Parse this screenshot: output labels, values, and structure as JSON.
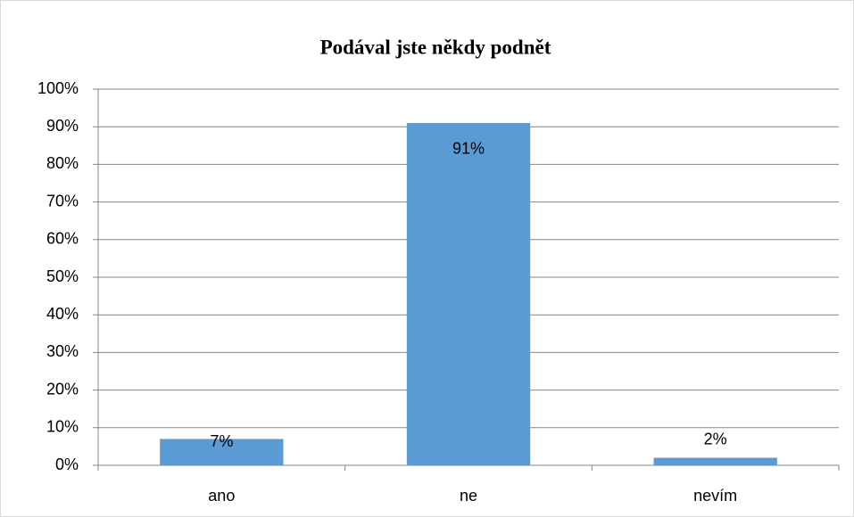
{
  "chart_data": {
    "type": "bar",
    "title": "Podával jste někdy podnět",
    "categories": [
      "ano",
      "ne",
      "nevím"
    ],
    "values": [
      7,
      91,
      2
    ],
    "value_labels": [
      "7%",
      "91%",
      "2%"
    ],
    "color": "#5b9bd5",
    "ylim": [
      0,
      100
    ],
    "yticks": [
      {
        "value": 0,
        "label": "0%"
      },
      {
        "value": 10,
        "label": "10%"
      },
      {
        "value": 20,
        "label": "20%"
      },
      {
        "value": 30,
        "label": "30%"
      },
      {
        "value": 40,
        "label": "40%"
      },
      {
        "value": 50,
        "label": "50%"
      },
      {
        "value": 60,
        "label": "60%"
      },
      {
        "value": 70,
        "label": "70%"
      },
      {
        "value": 80,
        "label": "80%"
      },
      {
        "value": 90,
        "label": "90%"
      },
      {
        "value": 100,
        "label": "100%"
      }
    ],
    "grid": true
  }
}
